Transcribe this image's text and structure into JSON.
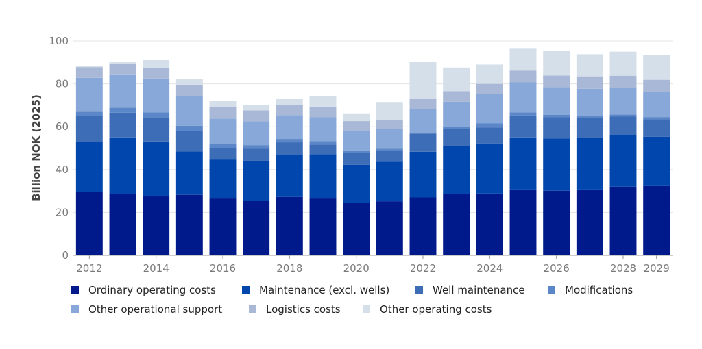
{
  "chart_data": {
    "type": "bar",
    "stacked": true,
    "ylabel": "Billion NOK (2025)",
    "ylim": [
      0,
      100
    ],
    "yticks": [
      0,
      20,
      40,
      60,
      80,
      100
    ],
    "grid": true,
    "legend_position": "bottom",
    "categories": [
      "2012",
      "2013",
      "2014",
      "2015",
      "2016",
      "2017",
      "2018",
      "2019",
      "2020",
      "2021",
      "2022",
      "2023",
      "2024",
      "2025",
      "2026",
      "2027",
      "2028",
      "2029"
    ],
    "xtick_labels": [
      "2012",
      "",
      "2014",
      "",
      "2016",
      "",
      "2018",
      "",
      "2020",
      "",
      "2022",
      "",
      "2024",
      "",
      "2026",
      "",
      "2028",
      "2029"
    ],
    "series": [
      {
        "name": "Ordinary operating costs",
        "color": "#001a8c",
        "values": [
          29.5,
          28.5,
          27.8,
          28.2,
          26.5,
          25.3,
          27.2,
          26.5,
          24.3,
          25.2,
          27.0,
          28.5,
          28.8,
          30.7,
          30.1,
          30.7,
          32.0,
          32.3
        ]
      },
      {
        "name": "Maintenance (excl. wells)",
        "color": "#0046ad",
        "values": [
          23.5,
          26.5,
          25.3,
          20.3,
          18.2,
          18.8,
          19.5,
          20.7,
          17.9,
          18.5,
          21.3,
          22.5,
          23.3,
          24.3,
          24.4,
          24.2,
          24.0,
          23.0
        ]
      },
      {
        "name": "Well maintenance",
        "color": "#3e6db8",
        "values": [
          12.0,
          11.5,
          10.8,
          9.5,
          5.3,
          5.7,
          6.0,
          4.5,
          5.5,
          5.0,
          8.5,
          8.0,
          7.6,
          10.2,
          10.0,
          9.0,
          8.7,
          8.1
        ]
      },
      {
        "name": "Modifications",
        "color": "#5b86c8",
        "values": [
          2.3,
          2.4,
          2.8,
          2.4,
          1.8,
          1.6,
          1.6,
          1.5,
          1.2,
          1.0,
          0.5,
          1.0,
          1.8,
          1.5,
          1.0,
          1.2,
          1.0,
          1.1
        ]
      },
      {
        "name": "Other operational support",
        "color": "#87a8d8",
        "values": [
          15.5,
          15.5,
          15.8,
          14.0,
          12.0,
          11.1,
          11.1,
          11.3,
          9.1,
          9.1,
          11.0,
          11.6,
          13.6,
          14.1,
          13.0,
          12.6,
          12.4,
          11.6
        ]
      },
      {
        "name": "Logistics costs",
        "color": "#a9b8d6",
        "values": [
          5.0,
          4.8,
          5.0,
          5.2,
          5.4,
          5.1,
          4.6,
          4.9,
          4.6,
          4.3,
          4.7,
          5.0,
          4.9,
          5.4,
          5.4,
          5.8,
          5.7,
          5.8
        ]
      },
      {
        "name": "Other operating costs",
        "color": "#d5dfea",
        "values": [
          0.7,
          1.0,
          3.7,
          2.5,
          2.8,
          2.6,
          3.0,
          4.9,
          3.6,
          8.4,
          17.3,
          11.0,
          9.0,
          10.5,
          11.6,
          10.3,
          11.2,
          11.4
        ]
      }
    ]
  }
}
